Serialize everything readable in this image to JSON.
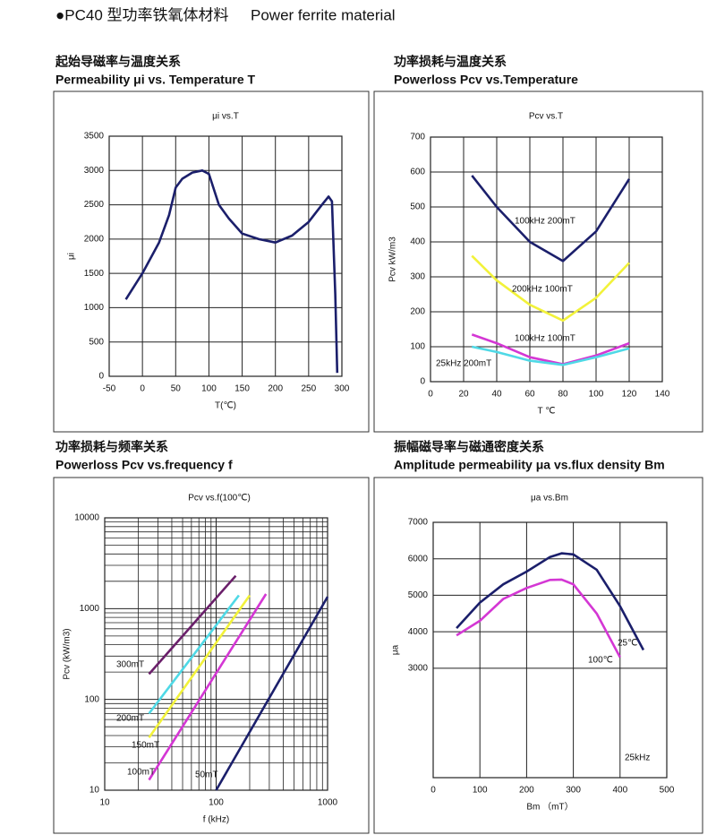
{
  "header": {
    "title_cn": "●PC40 型功率铁氧体材料",
    "title_en": "Power ferrite material"
  },
  "chart_data": [
    {
      "type": "line",
      "caption_cn": "起始导磁率与温度关系",
      "caption_en": "Permeability μi vs. Temperature T",
      "title": "μi vs.T",
      "xlabel": "T(℃)",
      "ylabel": "μi",
      "xlim": [
        -50,
        300
      ],
      "xticks": [
        -50,
        0,
        50,
        100,
        150,
        200,
        250,
        300
      ],
      "ylim": [
        0,
        3500
      ],
      "yticks": [
        0,
        500,
        1000,
        1500,
        2000,
        2500,
        3000,
        3500
      ],
      "grid": true,
      "series": [
        {
          "color": "#1b1f6b",
          "x": [
            -25,
            0,
            25,
            40,
            50,
            60,
            75,
            90,
            100,
            115,
            130,
            150,
            175,
            200,
            225,
            250,
            270,
            280,
            285,
            290,
            293
          ],
          "values": [
            1120,
            1500,
            1950,
            2350,
            2750,
            2880,
            2970,
            3000,
            2950,
            2500,
            2300,
            2080,
            2000,
            1950,
            2050,
            2250,
            2500,
            2620,
            2550,
            1200,
            50
          ]
        }
      ]
    },
    {
      "type": "line",
      "caption_cn": "功率损耗与温度关系",
      "caption_en": "Powerloss Pcv vs.Temperature",
      "title": "Pcv vs.T",
      "xlabel": "T ℃",
      "ylabel": "Pcv kW/m3",
      "xlim": [
        0,
        140
      ],
      "xticks": [
        0,
        20,
        40,
        60,
        80,
        100,
        120,
        140
      ],
      "ylim": [
        0,
        700
      ],
      "yticks": [
        0,
        100,
        200,
        300,
        400,
        500,
        600,
        700
      ],
      "grid": true,
      "series": [
        {
          "name": "100kHz 200mT",
          "color": "#1b1f6b",
          "x": [
            25,
            40,
            60,
            80,
            100,
            120
          ],
          "values": [
            590,
            500,
            400,
            345,
            430,
            580
          ]
        },
        {
          "name": "200kHz 100mT",
          "color": "#f2f23a",
          "x": [
            25,
            40,
            60,
            80,
            100,
            120
          ],
          "values": [
            360,
            290,
            220,
            175,
            240,
            340
          ]
        },
        {
          "name": "100kHz 100mT",
          "color": "#d437d4",
          "x": [
            25,
            40,
            60,
            80,
            100,
            120
          ],
          "values": [
            135,
            110,
            70,
            50,
            75,
            110
          ]
        },
        {
          "name": "25kHz 200mT",
          "color": "#4fd9e6",
          "x": [
            25,
            40,
            60,
            80,
            100,
            120
          ],
          "values": [
            100,
            85,
            60,
            48,
            70,
            95
          ]
        }
      ]
    },
    {
      "type": "line",
      "caption_cn": "功率损耗与频率关系",
      "caption_en": "Powerloss Pcv vs.frequency f",
      "title": "Pcv vs.f(100℃)",
      "xlabel": "f (kHz)",
      "ylabel": "Pcv (kW/m3)",
      "xscale": "log",
      "yscale": "log",
      "minor_grid": true,
      "xlim": [
        10,
        1000
      ],
      "xticks": [
        10,
        100,
        1000
      ],
      "ylim": [
        10,
        10000
      ],
      "yticks": [
        10,
        100,
        1000,
        10000
      ],
      "grid": true,
      "series": [
        {
          "name": "300mT",
          "color": "#6a1f6a",
          "x": [
            25,
            150
          ],
          "values": [
            190,
            2300
          ]
        },
        {
          "name": "200mT",
          "color": "#4fd9e6",
          "x": [
            25,
            160
          ],
          "values": [
            70,
            1400
          ]
        },
        {
          "name": "150mT",
          "color": "#f2f23a",
          "x": [
            25,
            200
          ],
          "values": [
            38,
            1400
          ]
        },
        {
          "name": "100mT",
          "color": "#d437d4",
          "x": [
            25,
            280
          ],
          "values": [
            13,
            1450
          ]
        },
        {
          "name": "50mT",
          "color": "#1b1f6b",
          "x": [
            100,
            1000
          ],
          "values": [
            10,
            1350
          ]
        }
      ]
    },
    {
      "type": "line",
      "caption_cn": "振幅磁导率与磁通密度关系",
      "caption_en": "Amplitude permeability μa vs.flux density Bm",
      "title": "μa vs.Bm",
      "xlabel": "Bm （mT）",
      "ylabel": "μa",
      "xlim": [
        0,
        500
      ],
      "xticks": [
        0,
        100,
        200,
        300,
        400,
        500
      ],
      "ylim": [
        0,
        7000
      ],
      "yticks": [
        3000,
        4000,
        5000,
        6000,
        7000
      ],
      "grid": true,
      "annotations": [
        "25kHz"
      ],
      "series": [
        {
          "name": "25℃",
          "color": "#1b1f6b",
          "x": [
            50,
            100,
            150,
            200,
            250,
            275,
            300,
            350,
            400,
            450
          ],
          "values": [
            4100,
            4800,
            5300,
            5650,
            6050,
            6150,
            6120,
            5700,
            4700,
            3500
          ]
        },
        {
          "name": "100℃",
          "color": "#d437d4",
          "x": [
            50,
            100,
            150,
            200,
            250,
            275,
            300,
            350,
            400
          ],
          "values": [
            3900,
            4300,
            4900,
            5200,
            5420,
            5430,
            5300,
            4500,
            3300
          ]
        }
      ]
    }
  ]
}
